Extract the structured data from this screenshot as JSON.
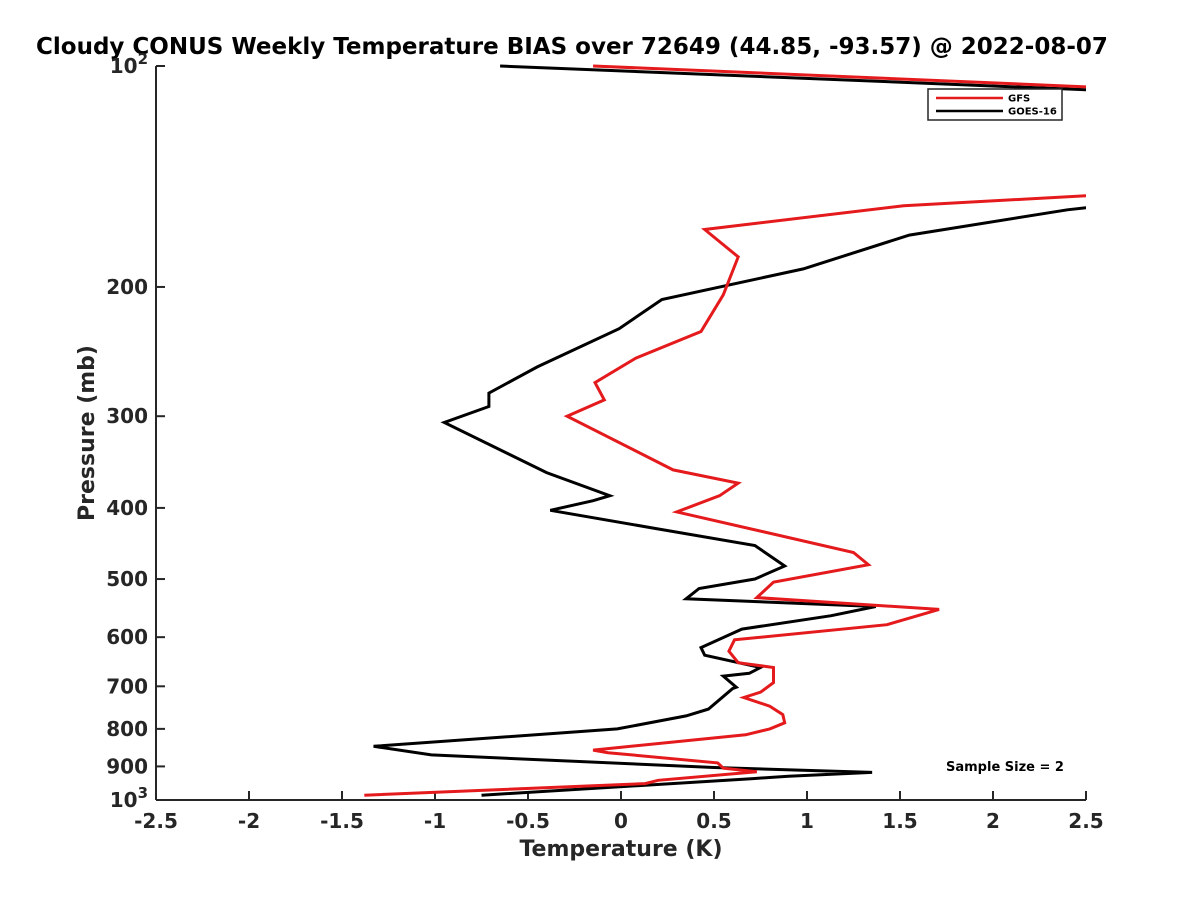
{
  "chart_data": {
    "type": "line",
    "title": "Cloudy CONUS Weekly Temperature BIAS over 72649 (44.85, -93.57) @ 2022-08-07",
    "xlabel": "Temperature (K)",
    "ylabel": "Pressure (mb)",
    "xlim": [
      -2.5,
      2.5
    ],
    "ylim": [
      100,
      1000
    ],
    "yscale": "log",
    "y_reversed": true,
    "grid": false,
    "legend_position": "top-right",
    "xticks": [
      "-2.5",
      "-2",
      "-1.5",
      "-1",
      "-0.5",
      "0",
      "0.5",
      "1",
      "1.5",
      "2",
      "2.5"
    ],
    "yticks": [
      {
        "value": 100,
        "base": "10",
        "exp": "2"
      },
      {
        "value": 200,
        "label": "200"
      },
      {
        "value": 300,
        "label": "300"
      },
      {
        "value": 400,
        "label": "400"
      },
      {
        "value": 500,
        "label": "500"
      },
      {
        "value": 600,
        "label": "600"
      },
      {
        "value": 700,
        "label": "700"
      },
      {
        "value": 800,
        "label": "800"
      },
      {
        "value": 900,
        "label": "900"
      },
      {
        "value": 1000,
        "base": "10",
        "exp": "3"
      }
    ],
    "annotation": "Sample Size = 2",
    "series": [
      {
        "name": "GFS",
        "color": "#e41a1c",
        "points": [
          [
            -0.15,
            100
          ],
          [
            2.6,
            107
          ],
          [
            2.6,
            150
          ],
          [
            2.55,
            150
          ],
          [
            1.52,
            155
          ],
          [
            0.45,
            167
          ],
          [
            0.63,
            182
          ],
          [
            0.55,
            205
          ],
          [
            0.43,
            230
          ],
          [
            0.08,
            250
          ],
          [
            -0.14,
            270
          ],
          [
            -0.09,
            285
          ],
          [
            -0.29,
            300
          ],
          [
            0.28,
            355
          ],
          [
            0.63,
            370
          ],
          [
            0.53,
            385
          ],
          [
            0.3,
            405
          ],
          [
            1.25,
            460
          ],
          [
            1.33,
            478
          ],
          [
            0.82,
            505
          ],
          [
            0.73,
            530
          ],
          [
            1.71,
            550
          ],
          [
            1.43,
            577
          ],
          [
            0.61,
            605
          ],
          [
            0.58,
            627
          ],
          [
            0.63,
            650
          ],
          [
            0.82,
            660
          ],
          [
            0.82,
            692
          ],
          [
            0.75,
            713
          ],
          [
            0.66,
            725
          ],
          [
            0.8,
            745
          ],
          [
            0.87,
            765
          ],
          [
            0.88,
            785
          ],
          [
            0.8,
            800
          ],
          [
            0.67,
            815
          ],
          [
            -0.15,
            855
          ],
          [
            -0.07,
            862
          ],
          [
            0.52,
            890
          ],
          [
            0.55,
            905
          ],
          [
            0.73,
            915
          ],
          [
            0.2,
            940
          ],
          [
            0.13,
            950
          ],
          [
            -1.38,
            985
          ]
        ]
      },
      {
        "name": "GOES-16",
        "color": "#000000",
        "points": [
          [
            -0.65,
            100
          ],
          [
            2.6,
            108
          ],
          [
            2.6,
            155
          ],
          [
            2.4,
            157
          ],
          [
            1.55,
            170
          ],
          [
            0.98,
            189
          ],
          [
            0.22,
            208
          ],
          [
            -0.01,
            228
          ],
          [
            -0.45,
            257
          ],
          [
            -0.71,
            279
          ],
          [
            -0.71,
            291
          ],
          [
            -0.95,
            306
          ],
          [
            -0.4,
            358
          ],
          [
            -0.06,
            385
          ],
          [
            -0.15,
            391
          ],
          [
            -0.38,
            403
          ],
          [
            0.17,
            426
          ],
          [
            0.72,
            450
          ],
          [
            0.88,
            480
          ],
          [
            0.72,
            500
          ],
          [
            0.42,
            515
          ],
          [
            0.35,
            532
          ],
          [
            1.37,
            545
          ],
          [
            1.13,
            561
          ],
          [
            0.65,
            585
          ],
          [
            0.43,
            620
          ],
          [
            0.45,
            635
          ],
          [
            0.75,
            660
          ],
          [
            0.69,
            672
          ],
          [
            0.55,
            678
          ],
          [
            0.62,
            702
          ],
          [
            0.6,
            705
          ],
          [
            0.47,
            752
          ],
          [
            0.35,
            768
          ],
          [
            -0.02,
            800
          ],
          [
            -1.33,
            845
          ],
          [
            -1.02,
            868
          ],
          [
            0.5,
            903
          ],
          [
            1.35,
            917
          ],
          [
            0.9,
            928
          ],
          [
            0.71,
            935
          ],
          [
            -0.75,
            985
          ]
        ]
      }
    ]
  }
}
